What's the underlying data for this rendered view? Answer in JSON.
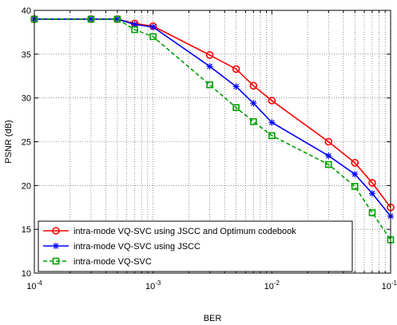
{
  "chart_data": {
    "type": "line",
    "title": "",
    "xlabel": "BER",
    "ylabel": "PSNR (dB)",
    "xscale": "log",
    "xlim": [
      0.0001,
      0.1
    ],
    "ylim": [
      10,
      40
    ],
    "grid": true,
    "legend_position": "bottom-left",
    "x_ticks": [
      0.0001,
      0.001,
      0.01,
      0.1
    ],
    "x_tick_labels": [
      {
        "base": "10",
        "exp": "-4"
      },
      {
        "base": "10",
        "exp": "-3"
      },
      {
        "base": "10",
        "exp": "-2"
      },
      {
        "base": "10",
        "exp": "-1"
      }
    ],
    "y_ticks": [
      10,
      15,
      20,
      25,
      30,
      35,
      40
    ],
    "y_tick_labels": [
      "10",
      "15",
      "20",
      "25",
      "30",
      "35",
      "40"
    ],
    "series": [
      {
        "name": "intra-mode VQ-SVC using JSCC and Optimum codebook",
        "color": "#ff0000",
        "line_style": "solid",
        "marker": "circle",
        "x": [
          0.0001,
          0.0003,
          0.0005,
          0.0007,
          0.001,
          0.003,
          0.005,
          0.007,
          0.01,
          0.03,
          0.05,
          0.07,
          0.1
        ],
        "y": [
          39.0,
          39.0,
          39.0,
          38.5,
          38.2,
          34.9,
          33.3,
          31.4,
          29.7,
          25.0,
          22.6,
          20.3,
          17.5
        ]
      },
      {
        "name": "intra-mode VQ-SVC using JSCC",
        "color": "#0000ff",
        "line_style": "solid",
        "marker": "star",
        "x": [
          0.0001,
          0.0003,
          0.0005,
          0.0007,
          0.001,
          0.003,
          0.005,
          0.007,
          0.01,
          0.03,
          0.05,
          0.07,
          0.1
        ],
        "y": [
          39.0,
          39.0,
          39.0,
          38.4,
          38.1,
          33.6,
          31.3,
          29.4,
          27.2,
          23.4,
          21.3,
          19.1,
          16.5
        ]
      },
      {
        "name": "intra-mode VQ-SVC",
        "color": "#00a000",
        "line_style": "dashed",
        "marker": "square",
        "x": [
          0.0001,
          0.0003,
          0.0005,
          0.0007,
          0.001,
          0.003,
          0.005,
          0.007,
          0.01,
          0.03,
          0.05,
          0.07,
          0.1
        ],
        "y": [
          39.0,
          39.0,
          39.0,
          37.8,
          37.0,
          31.5,
          28.9,
          27.3,
          25.7,
          22.4,
          19.9,
          16.9,
          13.8
        ]
      }
    ]
  }
}
